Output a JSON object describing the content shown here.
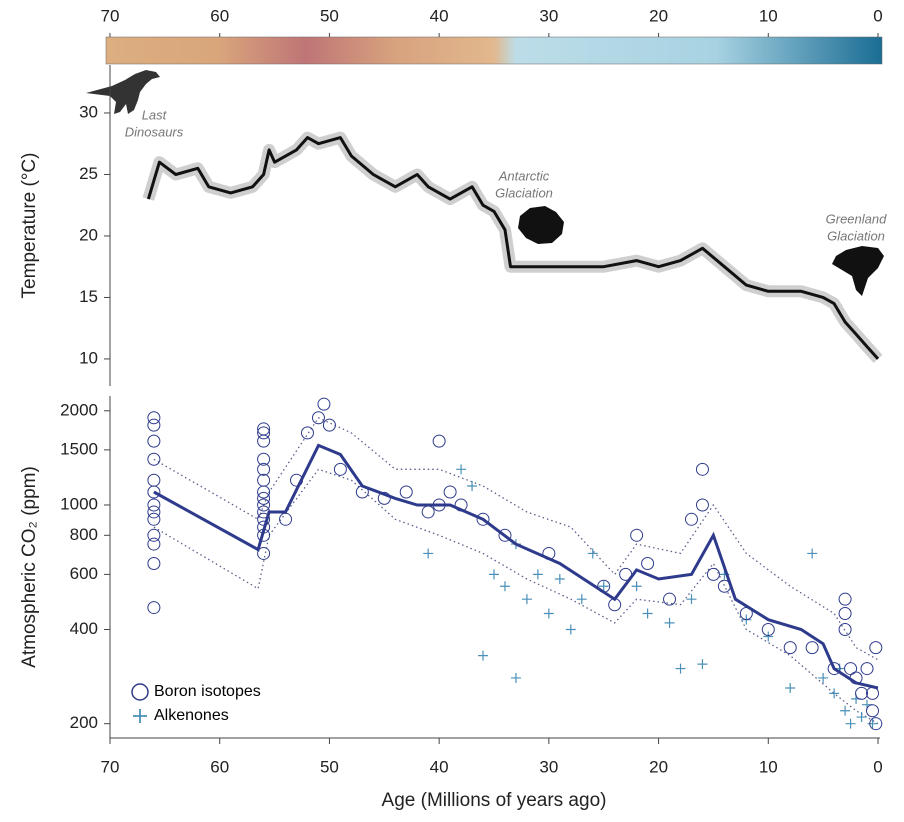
{
  "chart_data": [
    {
      "type": "colorbar",
      "xlim": [
        70,
        0
      ],
      "xticks": [
        70,
        60,
        50,
        40,
        30,
        20,
        10,
        0
      ],
      "stops": [
        {
          "value": 70,
          "color": "#dcae80"
        },
        {
          "value": 60,
          "color": "#d9a67c"
        },
        {
          "value": 52,
          "color": "#bf7576"
        },
        {
          "value": 44,
          "color": "#d7a27e"
        },
        {
          "value": 35,
          "color": "#e2b88e"
        },
        {
          "value": 33,
          "color": "#bcdde8"
        },
        {
          "value": 15,
          "color": "#a8d2e2"
        },
        {
          "value": 0,
          "color": "#1a6d94"
        }
      ]
    },
    {
      "type": "line",
      "ylabel": "Temperature (°C)",
      "xlim": [
        70,
        0
      ],
      "ylim": [
        7.8,
        33.9
      ],
      "yticks": [
        10,
        15,
        20,
        25,
        30
      ],
      "annotations": [
        {
          "lines": [
            "Last",
            "Dinosaurs"
          ]
        },
        {
          "lines": [
            "Antarctic",
            "Glaciation"
          ]
        },
        {
          "lines": [
            "Greenland",
            "Glaciation"
          ]
        }
      ],
      "series": [
        {
          "color": "#111111",
          "spread_color": "#cfcfcf",
          "x": [
            66.5,
            66,
            65.5,
            64,
            62,
            61,
            59,
            57,
            56,
            55.5,
            55,
            53,
            52,
            51,
            49,
            48,
            46,
            44,
            42,
            41,
            39,
            37,
            36,
            35,
            34,
            33.5,
            30,
            27,
            25,
            22,
            20,
            18,
            16,
            14,
            12,
            10,
            7,
            5,
            4,
            3,
            2,
            1,
            0
          ],
          "values": [
            23,
            24.5,
            26,
            25,
            25.5,
            24,
            23.5,
            24,
            25,
            27,
            26,
            27,
            28,
            27.5,
            28,
            26.5,
            25,
            24,
            25,
            24,
            23,
            24,
            22.5,
            22,
            20.5,
            17.5,
            17.5,
            17.5,
            17.5,
            18,
            17.5,
            18,
            19,
            17.5,
            16,
            15.5,
            15.5,
            15,
            14.5,
            13,
            12,
            11,
            10
          ]
        }
      ]
    },
    {
      "type": "scatter",
      "ylabel": "Atmospheric CO₂ (ppm)",
      "xlabel": "Age (Millions of years ago)",
      "log_y": true,
      "xlim": [
        70,
        0
      ],
      "xticks": [
        70,
        60,
        50,
        40,
        30,
        20,
        10,
        0
      ],
      "ylim": [
        180,
        2230
      ],
      "yticks": [
        200,
        400,
        600,
        800,
        1000,
        1500,
        2000
      ],
      "legend": "lower left",
      "series": [
        {
          "name": "Boron isotopes",
          "marker": "circle",
          "color": "#2e3a8c",
          "x": [
            66,
            66,
            66,
            66,
            66,
            66,
            66,
            66,
            66,
            66,
            66,
            66,
            66,
            56,
            56,
            56,
            56,
            56,
            56,
            56,
            56,
            56,
            56,
            56,
            56,
            56,
            56,
            54,
            53,
            52,
            51,
            50.5,
            50,
            49,
            47,
            45,
            43,
            41,
            40,
            40,
            39,
            38,
            36,
            34,
            30,
            25,
            24,
            23,
            22,
            21,
            19,
            17,
            16,
            16,
            15,
            14,
            12,
            10,
            8,
            6,
            4,
            3,
            3,
            3,
            2.5,
            2,
            1.5,
            1,
            0.5,
            0.5,
            0.2,
            0.2
          ],
          "values": [
            1900,
            1800,
            1600,
            1400,
            1200,
            1100,
            1000,
            950,
            900,
            800,
            750,
            650,
            470,
            1750,
            1700,
            1600,
            1400,
            1300,
            1200,
            1100,
            1050,
            1000,
            950,
            900,
            850,
            800,
            700,
            900,
            1200,
            1700,
            1900,
            2100,
            1800,
            1300,
            1100,
            1050,
            1100,
            950,
            1600,
            1000,
            1100,
            1000,
            900,
            800,
            700,
            550,
            480,
            600,
            800,
            650,
            500,
            900,
            1300,
            1000,
            600,
            550,
            450,
            400,
            350,
            350,
            300,
            500,
            450,
            400,
            300,
            280,
            250,
            300,
            250,
            220,
            350,
            200
          ]
        },
        {
          "name": "Alkenones",
          "marker": "plus",
          "color": "#4a90b8",
          "x": [
            41,
            38,
            37,
            35,
            34,
            33,
            32,
            31,
            30,
            29,
            28,
            27,
            26,
            25,
            22,
            21,
            19,
            18,
            17,
            16,
            14,
            12,
            10,
            8,
            6,
            5,
            4,
            3.5,
            3,
            2.5,
            2,
            1.5,
            1,
            0.5,
            36,
            33
          ],
          "values": [
            700,
            1300,
            1150,
            600,
            550,
            750,
            500,
            600,
            450,
            580,
            400,
            500,
            700,
            550,
            550,
            450,
            420,
            300,
            500,
            310,
            600,
            430,
            380,
            260,
            700,
            280,
            250,
            300,
            220,
            200,
            240,
            210,
            230,
            200,
            330,
            280
          ]
        },
        {
          "marker": "line",
          "color": "#2e3a8c",
          "x": [
            66,
            56.5,
            55.5,
            54,
            51,
            49,
            47,
            44,
            42,
            39,
            36,
            33,
            29,
            24,
            22,
            20,
            17,
            15,
            13,
            10,
            7,
            5,
            4,
            2,
            0
          ],
          "values": [
            1100,
            720,
            950,
            950,
            1550,
            1450,
            1150,
            1050,
            1000,
            1000,
            900,
            750,
            650,
            500,
            620,
            580,
            600,
            800,
            500,
            430,
            400,
            360,
            300,
            270,
            260
          ]
        },
        {
          "marker": "dotted",
          "color": "#5a5f8c",
          "x": [
            66,
            56.5,
            55.5,
            51,
            48,
            44,
            40,
            36,
            32,
            28,
            24,
            22,
            18,
            15,
            12,
            8,
            4,
            2,
            0
          ],
          "values": [
            1400,
            900,
            1100,
            1900,
            1700,
            1300,
            1300,
            1150,
            950,
            850,
            600,
            750,
            700,
            1000,
            700,
            550,
            450,
            350,
            320
          ]
        },
        {
          "marker": "dotted",
          "color": "#5a5f8c",
          "x": [
            66,
            56.5,
            55.5,
            51,
            48,
            44,
            40,
            36,
            32,
            28,
            24,
            22,
            18,
            15,
            12,
            8,
            4,
            2,
            0
          ],
          "values": [
            850,
            540,
            800,
            1300,
            1200,
            900,
            800,
            700,
            580,
            500,
            420,
            500,
            480,
            650,
            400,
            330,
            250,
            220,
            200
          ]
        }
      ]
    }
  ]
}
